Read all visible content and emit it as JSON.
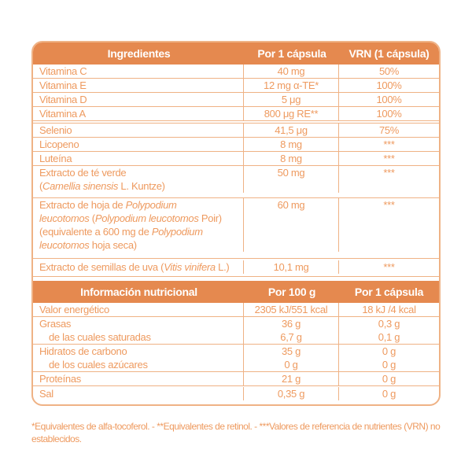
{
  "colors": {
    "band_background": "#E5894F",
    "text_orange": "#EE9A5F",
    "border_orange": "#EFB285"
  },
  "ingredients": {
    "header": {
      "col1": "Ingredientes",
      "col2": "Por 1 cápsula",
      "col3": "VRN (1 cápsula)"
    },
    "rows": [
      {
        "name": "Vitamina C",
        "amount": "40 mg",
        "vrn": "50%"
      },
      {
        "name": "Vitamina E",
        "amount": "12 mg α-TE*",
        "vrn": "100%"
      },
      {
        "name": "Vitamina D",
        "amount": "5 μg",
        "vrn": "100%"
      },
      {
        "name": "Vitamina A",
        "amount": "800 μg RE**",
        "vrn": "100%"
      },
      {
        "name": "Selenio",
        "amount": "41,5 μg",
        "vrn": "75%"
      },
      {
        "name": "Licopeno",
        "amount": "8 mg",
        "vrn": "***"
      },
      {
        "name": "Luteína",
        "amount": "8 mg",
        "vrn": "***"
      },
      {
        "p1": "Extracto de té verde",
        "p2": "(",
        "sci1": "Camellia sinensis",
        "p3": " L. Kuntze)",
        "amount": "50 mg",
        "vrn": "***"
      },
      {
        "p1": "Extracto de hoja de ",
        "sci1": "Polypodium",
        "sci2": "leucotomos",
        "p2": " (",
        "sci3": "Polypodium leucotomos",
        "p3": " Poir)",
        "p4": "(equivalente a 600 mg de ",
        "sci4": "Polypodium",
        "sci5": "leucotomos",
        "p5": " hoja seca)",
        "amount": "60 mg",
        "vrn": "***"
      },
      {
        "p1": "Extracto de semillas de uva (",
        "sci1": "Vitis vinifera",
        "p2": " L.)",
        "amount": "10,1 mg",
        "vrn": "***"
      }
    ]
  },
  "nutrition": {
    "header": {
      "col1": "Información nutricional",
      "col2": "Por 100 g",
      "col3": "Por 1 cápsula"
    },
    "rows": [
      {
        "name": "Valor energético",
        "per100g": "2305 kJ/551 kcal",
        "per_capsula": "18 kJ /4 kcal"
      },
      {
        "name": "Grasas",
        "per100g": "36 g",
        "per_capsula": "0,3 g"
      },
      {
        "name": "de las cuales saturadas",
        "per100g": "6,7 g",
        "per_capsula": "0,1 g"
      },
      {
        "name": "Hidratos de carbono",
        "per100g": "35 g",
        "per_capsula": "0 g"
      },
      {
        "name": "de los cuales azúcares",
        "per100g": "0 g",
        "per_capsula": "0 g"
      },
      {
        "name": "Proteínas",
        "per100g": "21 g",
        "per_capsula": "0 g"
      },
      {
        "name": "Sal",
        "per100g": "0,35 g",
        "per_capsula": "0 g"
      }
    ]
  },
  "footnote": "*Equivalentes de alfa-tocoferol. - **Equivalentes de retinol. - ***Valores de referencia de nutrientes (VRN) no establecidos."
}
